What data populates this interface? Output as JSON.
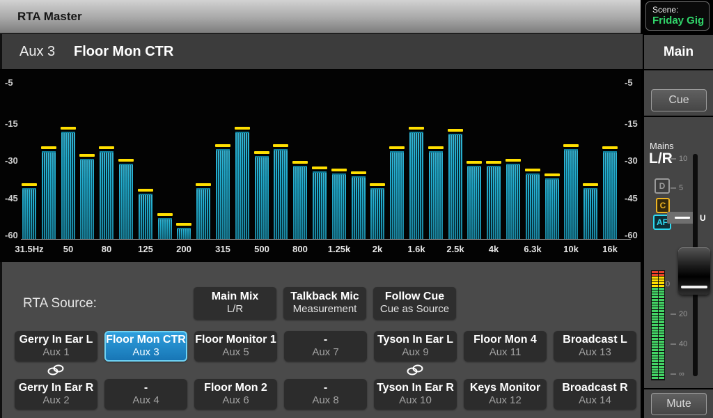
{
  "window": {
    "title": "RTA Master"
  },
  "scene": {
    "label": "Scene:",
    "name": "Friday Gig"
  },
  "channel_header": {
    "channel": "Aux 3",
    "name": "Floor Mon CTR"
  },
  "sidebar": {
    "main_tab": "Main",
    "cue_button": "Cue",
    "mute_button": "Mute",
    "mains_label": "Mains",
    "mains_channel": "L/R",
    "badges": [
      {
        "label": "D",
        "color": "#9a9a9a",
        "bg": "#3d3d3d"
      },
      {
        "label": "C",
        "color": "#edb422",
        "bg": "#35290c"
      },
      {
        "label": "AF",
        "color": "#2fd9f0",
        "bg": "#0e2f36"
      }
    ],
    "fader_ticks": [
      "10",
      "5",
      "20",
      "40",
      "∞"
    ],
    "unity_label": "U",
    "meter_zero_label": "0",
    "meter": {
      "red_segments": 2,
      "yellow_segments": 4,
      "green_segments": 33,
      "red_color": "#e8402a",
      "yellow_color": "#ffe000",
      "green_color": "#43d465"
    }
  },
  "rta_panel": {
    "source_label": "RTA Source:",
    "source_buttons": [
      {
        "line1": "Main Mix",
        "line2": "L/R"
      },
      {
        "line1": "Talkback Mic",
        "line2": "Measurement"
      },
      {
        "line1": "Follow Cue",
        "line2": "Cue as Source"
      }
    ],
    "aux_rows": [
      [
        {
          "name": "Gerry In Ear L",
          "sub": "Aux 1",
          "selected": false,
          "linked": true
        },
        {
          "name": "Floor Mon CTR",
          "sub": "Aux 3",
          "selected": true,
          "linked": false
        },
        {
          "name": "Floor Monitor 1",
          "sub": "Aux 5",
          "selected": false,
          "linked": false
        },
        {
          "name": "-",
          "sub": "Aux 7",
          "selected": false,
          "linked": false
        },
        {
          "name": "Tyson In Ear L",
          "sub": "Aux 9",
          "selected": false,
          "linked": true
        },
        {
          "name": "Floor Mon 4",
          "sub": "Aux 11",
          "selected": false,
          "linked": false
        },
        {
          "name": "Broadcast L",
          "sub": "Aux 13",
          "selected": false,
          "linked": false
        }
      ],
      [
        {
          "name": "Gerry In Ear R",
          "sub": "Aux 2",
          "selected": false
        },
        {
          "name": "-",
          "sub": "Aux 4",
          "selected": false
        },
        {
          "name": "Floor Mon 2",
          "sub": "Aux 6",
          "selected": false
        },
        {
          "name": "-",
          "sub": "Aux 8",
          "selected": false
        },
        {
          "name": "Tyson In Ear R",
          "sub": "Aux 10",
          "selected": false
        },
        {
          "name": "Keys Monitor",
          "sub": "Aux 12",
          "selected": false
        },
        {
          "name": "Broadcast R",
          "sub": "Aux 14",
          "selected": false
        }
      ]
    ]
  },
  "chart_data": {
    "type": "bar",
    "title": "RTA 1/3-octave spectrum",
    "ylabel": "dB",
    "ylim": [
      -60,
      -5
    ],
    "y_tick_labels": [
      "-5",
      "-15",
      "-30",
      "-45",
      "-60"
    ],
    "x_tick_labels": [
      "31.5Hz",
      "50",
      "80",
      "125",
      "200",
      "315",
      "500",
      "800",
      "1.25k",
      "2k",
      "1.6k",
      "2.5k",
      "4k",
      "6.3k",
      "10k",
      "16k"
    ],
    "values_db": [
      -41,
      -26,
      -18,
      -29,
      -26,
      -31,
      -43,
      -53,
      -57,
      -41,
      -25,
      -18,
      -28,
      -25,
      -32,
      -34,
      -35,
      -36,
      -41,
      -26,
      -18,
      -26,
      -19,
      -32,
      -32,
      -31,
      -35,
      -37,
      -25,
      -41,
      -26
    ],
    "peak_hold_db": [
      -39,
      -24,
      -16,
      -27,
      -24,
      -29,
      -41,
      -51,
      -55,
      -39,
      -23,
      -16,
      -26,
      -23,
      -30,
      -32,
      -33,
      -34,
      -39,
      -24,
      -16,
      -24,
      -17,
      -30,
      -30,
      -29,
      -33,
      -35,
      -23,
      -39,
      -24
    ],
    "bar_color": "#17a4c6",
    "peak_color": "#ffdf00",
    "grid": false,
    "legend": false
  }
}
